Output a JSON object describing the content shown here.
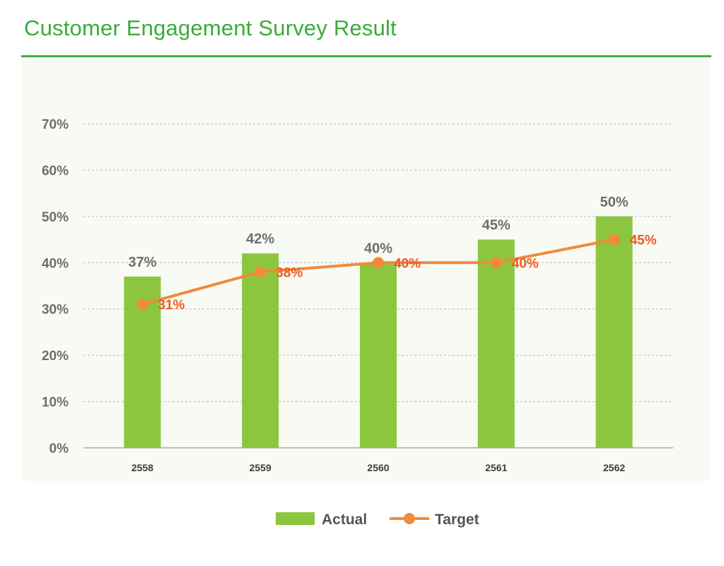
{
  "title": "Customer Engagement Survey Result",
  "colors": {
    "title": "#3aab3a",
    "bar": "#8cc63f",
    "line": "#f08a3c",
    "line_label": "#ef5a24",
    "axis_text": "#6d6e71"
  },
  "chart_data": {
    "type": "bar",
    "title": "Customer Engagement Survey Result",
    "xlabel": "",
    "ylabel": "",
    "categories": [
      "2558",
      "2559",
      "2560",
      "2561",
      "2562"
    ],
    "y_ticks": [
      "0%",
      "10%",
      "20%",
      "30%",
      "40%",
      "50%",
      "60%",
      "70%"
    ],
    "ylim": [
      0,
      70
    ],
    "grid": true,
    "legend_position": "bottom",
    "series": [
      {
        "name": "Actual",
        "type": "bar",
        "values": [
          37,
          42,
          40,
          45,
          50
        ],
        "labels": [
          "37%",
          "42%",
          "40%",
          "45%",
          "50%"
        ]
      },
      {
        "name": "Target",
        "type": "line",
        "values": [
          31,
          38,
          40,
          40,
          45
        ],
        "labels": [
          "31%",
          "38%",
          "40%",
          "40%",
          "45%"
        ]
      }
    ]
  }
}
